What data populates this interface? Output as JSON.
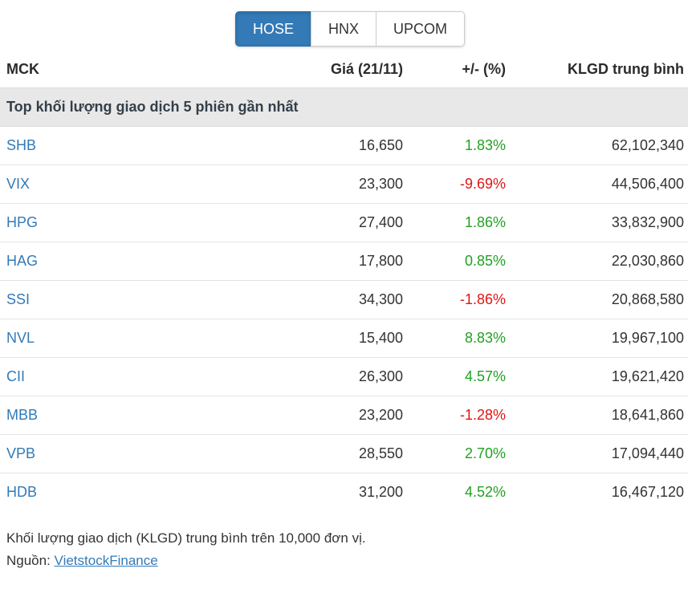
{
  "tabs": {
    "items": [
      {
        "label": "HOSE",
        "active": true
      },
      {
        "label": "HNX",
        "active": false
      },
      {
        "label": "UPCOM",
        "active": false
      }
    ]
  },
  "table": {
    "columns": {
      "ticker": "MCK",
      "price": "Giá (21/11)",
      "change": "+/- (%)",
      "volume": "KLGD trung bình"
    },
    "section_title": "Top khối lượng giao dịch 5 phiên gần nhất",
    "rows": [
      {
        "ticker": "SHB",
        "price": "16,650",
        "change": "1.83%",
        "volume": "62,102,340"
      },
      {
        "ticker": "VIX",
        "price": "23,300",
        "change": "-9.69%",
        "volume": "44,506,400"
      },
      {
        "ticker": "HPG",
        "price": "27,400",
        "change": "1.86%",
        "volume": "33,832,900"
      },
      {
        "ticker": "HAG",
        "price": "17,800",
        "change": "0.85%",
        "volume": "22,030,860"
      },
      {
        "ticker": "SSI",
        "price": "34,300",
        "change": "-1.86%",
        "volume": "20,868,580"
      },
      {
        "ticker": "NVL",
        "price": "15,400",
        "change": "8.83%",
        "volume": "19,967,100"
      },
      {
        "ticker": "CII",
        "price": "26,300",
        "change": "4.57%",
        "volume": "19,621,420"
      },
      {
        "ticker": "MBB",
        "price": "23,200",
        "change": "-1.28%",
        "volume": "18,641,860"
      },
      {
        "ticker": "VPB",
        "price": "28,550",
        "change": "2.70%",
        "volume": "17,094,440"
      },
      {
        "ticker": "HDB",
        "price": "31,200",
        "change": "4.52%",
        "volume": "16,467,120"
      }
    ]
  },
  "footer": {
    "note": "Khối lượng giao dịch (KLGD) trung bình trên 10,000 đơn vị.",
    "source_label": "Nguồn: ",
    "source_link": "VietstockFinance"
  },
  "colors": {
    "accent": "#337ab7",
    "up": "#22a122",
    "down": "#e01515",
    "section_bg": "#e8e8e8"
  }
}
